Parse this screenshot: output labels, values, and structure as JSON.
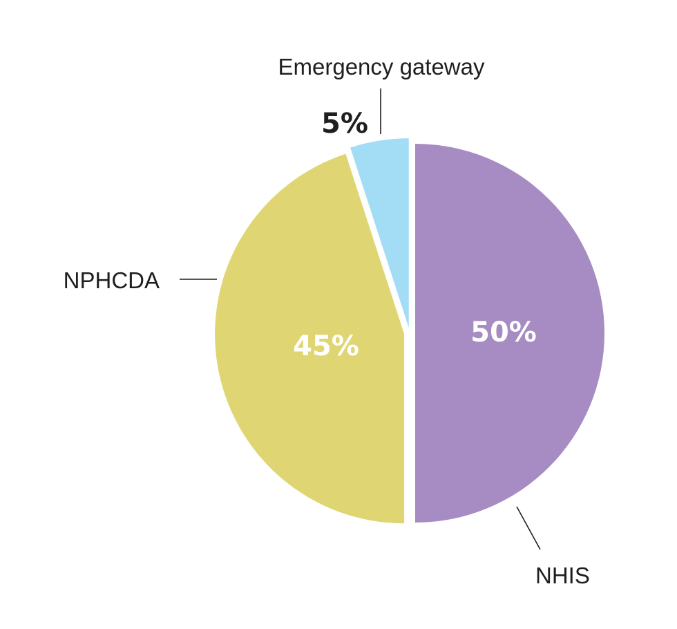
{
  "chart_data": {
    "type": "pie",
    "slices": [
      {
        "label": "NHIS",
        "value": 50,
        "display": "50%",
        "color": "#a68cc2",
        "label_color": "#ffffff"
      },
      {
        "label": "NPHCDA",
        "value": 45,
        "display": "45%",
        "color": "#dfd673",
        "label_color": "#ffffff"
      },
      {
        "label": "Emergency gateway",
        "value": 5,
        "display": "5%",
        "color": "#a3dcf5",
        "label_color": "#1f1f1f"
      }
    ],
    "start_angle": "12 o'clock",
    "direction": "clockwise",
    "legend": "none"
  }
}
